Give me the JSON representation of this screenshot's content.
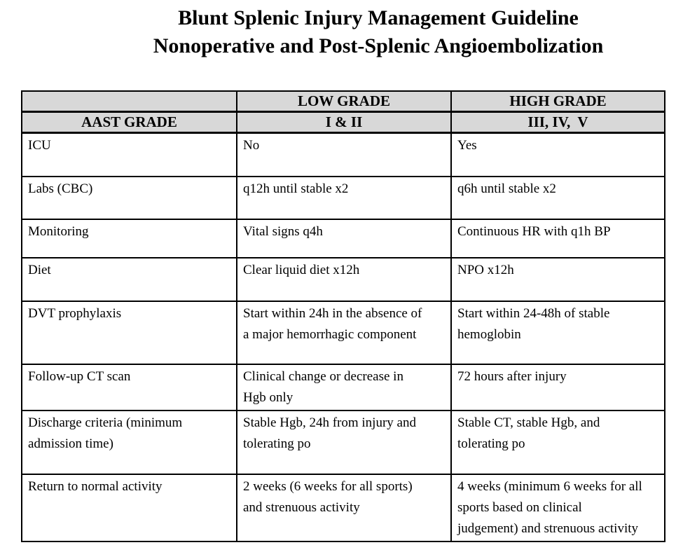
{
  "title": {
    "line1": "Blunt Splenic Injury Management Guideline",
    "line2": "Nonoperative and Post-Splenic Angioembolization"
  },
  "table": {
    "row_header_label": "AAST GRADE",
    "columns": {
      "low": {
        "group": "LOW GRADE",
        "grades": "I & II"
      },
      "high": {
        "group": "HIGH GRADE",
        "grades": "III, IV,  V"
      }
    },
    "rows": [
      {
        "label": "ICU",
        "low": "No",
        "high": "Yes"
      },
      {
        "label": "Labs (CBC)",
        "low": "q12h until stable x2",
        "high": "q6h until stable x2"
      },
      {
        "label": "Monitoring",
        "low": "Vital signs q4h",
        "high": "Continuous HR with q1h BP"
      },
      {
        "label": "Diet",
        "low": "Clear liquid diet x12h",
        "high": "NPO x12h"
      },
      {
        "label": "DVT prophylaxis",
        "low": "Start within 24h in the absence of\na major hemorrhagic component",
        "high": "Start within 24-48h of stable\nhemoglobin"
      },
      {
        "label": "Follow-up CT scan",
        "low": "Clinical change or decrease in\nHgb only",
        "high": "72 hours after injury"
      },
      {
        "label": "Discharge criteria (minimum\nadmission time)",
        "low": "Stable Hgb, 24h from injury and\ntolerating po",
        "high": "Stable CT, stable Hgb, and\ntolerating po"
      },
      {
        "label": "Return to normal activity",
        "low": "2 weeks (6 weeks for all sports)\nand strenuous activity",
        "high": "4 weeks (minimum 6 weeks for all\nsports based on clinical\njudgement) and strenuous activity"
      }
    ]
  },
  "colors": {
    "header_bg": "#d8d8d8",
    "border": "#000000",
    "text": "#000000",
    "page_bg": "#ffffff"
  }
}
